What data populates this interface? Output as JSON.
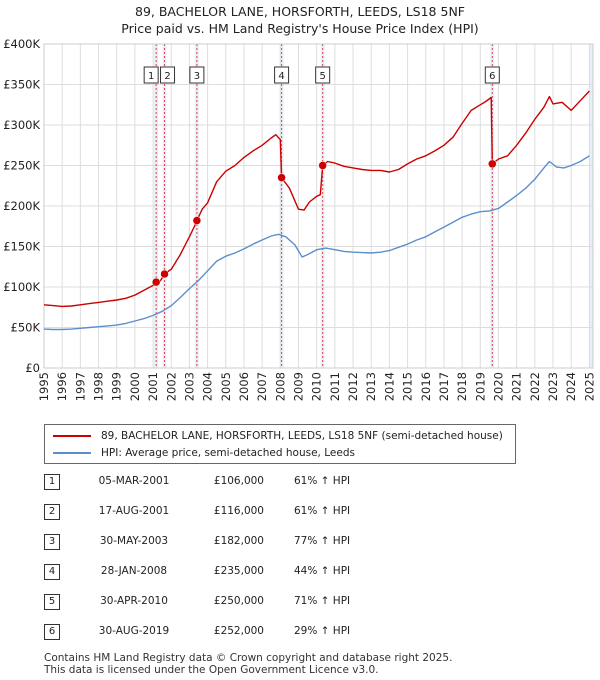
{
  "title_line1": "89, BACHELOR LANE, HORSFORTH, LEEDS, LS18 5NF",
  "title_line2": "Price paid vs. HM Land Registry's House Price Index (HPI)",
  "colors": {
    "property": "#cc0000",
    "hpi": "#5b8fcc",
    "marker_line": "#dd4444",
    "grid": "#dddddd",
    "shade": "#e8eef8"
  },
  "chart_data": {
    "type": "line",
    "title": "89, BACHELOR LANE, HORSFORTH, LEEDS, LS18 5NF",
    "subtitle": "Price paid vs. HM Land Registry's House Price Index (HPI)",
    "xlim": [
      1995,
      2025.2
    ],
    "ylim": [
      0,
      400000
    ],
    "grid": true,
    "legend_position": "bottom",
    "x_ticks": [
      1995,
      1996,
      1997,
      1998,
      1999,
      2000,
      2001,
      2002,
      2003,
      2004,
      2005,
      2006,
      2007,
      2008,
      2009,
      2010,
      2011,
      2012,
      2013,
      2014,
      2015,
      2016,
      2017,
      2018,
      2019,
      2020,
      2021,
      2022,
      2023,
      2024,
      2025
    ],
    "y_ticks": [
      {
        "value": 0,
        "label": "£0"
      },
      {
        "value": 50000,
        "label": "£50K"
      },
      {
        "value": 100000,
        "label": "£100K"
      },
      {
        "value": 150000,
        "label": "£150K"
      },
      {
        "value": 200000,
        "label": "£200K"
      },
      {
        "value": 250000,
        "label": "£250K"
      },
      {
        "value": 300000,
        "label": "£300K"
      },
      {
        "value": 350000,
        "label": "£350K"
      },
      {
        "value": 400000,
        "label": "£400K"
      }
    ],
    "series": [
      {
        "name": "89, BACHELOR LANE, HORSFORTH, LEEDS, LS18 5NF (semi-detached house)",
        "color": "#cc0000",
        "points": [
          [
            1995.0,
            78000
          ],
          [
            1995.5,
            77000
          ],
          [
            1996.0,
            76000
          ],
          [
            1996.5,
            76500
          ],
          [
            1997.0,
            78000
          ],
          [
            1997.5,
            79500
          ],
          [
            1998.0,
            81000
          ],
          [
            1998.5,
            82500
          ],
          [
            1999.0,
            84000
          ],
          [
            1999.5,
            86000
          ],
          [
            2000.0,
            90000
          ],
          [
            2000.5,
            96000
          ],
          [
            2001.0,
            102000
          ],
          [
            2001.18,
            106000
          ],
          [
            2001.4,
            107500
          ],
          [
            2001.63,
            116000
          ],
          [
            2002.0,
            122000
          ],
          [
            2002.5,
            140000
          ],
          [
            2003.0,
            162000
          ],
          [
            2003.3,
            176000
          ],
          [
            2003.41,
            182000
          ],
          [
            2003.7,
            196000
          ],
          [
            2004.0,
            204000
          ],
          [
            2004.5,
            230000
          ],
          [
            2005.0,
            243000
          ],
          [
            2005.5,
            250000
          ],
          [
            2006.0,
            260000
          ],
          [
            2006.5,
            268000
          ],
          [
            2007.0,
            275000
          ],
          [
            2007.5,
            284000
          ],
          [
            2007.75,
            288000
          ],
          [
            2008.0,
            282000
          ],
          [
            2008.07,
            235000
          ],
          [
            2008.5,
            222000
          ],
          [
            2009.0,
            196000
          ],
          [
            2009.3,
            195000
          ],
          [
            2009.6,
            205000
          ],
          [
            2010.0,
            212000
          ],
          [
            2010.2,
            214000
          ],
          [
            2010.33,
            250000
          ],
          [
            2010.6,
            255000
          ],
          [
            2011.0,
            253000
          ],
          [
            2011.5,
            249000
          ],
          [
            2012.0,
            247000
          ],
          [
            2012.5,
            245000
          ],
          [
            2013.0,
            244000
          ],
          [
            2013.5,
            244000
          ],
          [
            2014.0,
            242000
          ],
          [
            2014.5,
            245000
          ],
          [
            2015.0,
            252000
          ],
          [
            2015.5,
            258000
          ],
          [
            2016.0,
            262000
          ],
          [
            2016.5,
            268000
          ],
          [
            2017.0,
            275000
          ],
          [
            2017.5,
            285000
          ],
          [
            2018.0,
            302000
          ],
          [
            2018.5,
            318000
          ],
          [
            2019.0,
            325000
          ],
          [
            2019.3,
            329000
          ],
          [
            2019.6,
            334000
          ],
          [
            2019.66,
            252000
          ],
          [
            2020.0,
            258000
          ],
          [
            2020.5,
            262000
          ],
          [
            2021.0,
            275000
          ],
          [
            2021.5,
            290000
          ],
          [
            2022.0,
            307000
          ],
          [
            2022.5,
            322000
          ],
          [
            2022.8,
            335000
          ],
          [
            2023.0,
            326000
          ],
          [
            2023.5,
            328000
          ],
          [
            2024.0,
            318000
          ],
          [
            2024.5,
            330000
          ],
          [
            2025.0,
            342000
          ]
        ]
      },
      {
        "name": "HPI: Average price, semi-detached house, Leeds",
        "color": "#5b8fcc",
        "points": [
          [
            1995.0,
            48000
          ],
          [
            1995.5,
            47500
          ],
          [
            1996.0,
            47500
          ],
          [
            1996.5,
            48000
          ],
          [
            1997.0,
            49000
          ],
          [
            1997.5,
            50000
          ],
          [
            1998.0,
            51000
          ],
          [
            1998.5,
            52000
          ],
          [
            1999.0,
            53000
          ],
          [
            1999.5,
            55000
          ],
          [
            2000.0,
            58000
          ],
          [
            2000.5,
            61000
          ],
          [
            2001.0,
            65000
          ],
          [
            2001.5,
            70000
          ],
          [
            2002.0,
            77000
          ],
          [
            2002.5,
            87000
          ],
          [
            2003.0,
            98000
          ],
          [
            2003.5,
            108000
          ],
          [
            2004.0,
            120000
          ],
          [
            2004.5,
            132000
          ],
          [
            2005.0,
            138000
          ],
          [
            2005.5,
            142000
          ],
          [
            2006.0,
            147000
          ],
          [
            2006.5,
            153000
          ],
          [
            2007.0,
            158000
          ],
          [
            2007.5,
            163000
          ],
          [
            2007.9,
            165000
          ],
          [
            2008.3,
            162000
          ],
          [
            2008.8,
            152000
          ],
          [
            2009.2,
            137000
          ],
          [
            2009.5,
            140000
          ],
          [
            2010.0,
            146000
          ],
          [
            2010.5,
            148000
          ],
          [
            2011.0,
            146000
          ],
          [
            2011.5,
            144000
          ],
          [
            2012.0,
            143000
          ],
          [
            2012.5,
            142500
          ],
          [
            2013.0,
            142000
          ],
          [
            2013.5,
            143000
          ],
          [
            2014.0,
            145000
          ],
          [
            2014.5,
            149000
          ],
          [
            2015.0,
            153000
          ],
          [
            2015.5,
            158000
          ],
          [
            2016.0,
            162000
          ],
          [
            2016.5,
            168000
          ],
          [
            2017.0,
            174000
          ],
          [
            2017.5,
            180000
          ],
          [
            2018.0,
            186000
          ],
          [
            2018.5,
            190000
          ],
          [
            2019.0,
            193000
          ],
          [
            2019.5,
            194000
          ],
          [
            2020.0,
            197000
          ],
          [
            2020.5,
            205000
          ],
          [
            2021.0,
            213000
          ],
          [
            2021.5,
            222000
          ],
          [
            2022.0,
            233000
          ],
          [
            2022.5,
            247000
          ],
          [
            2022.8,
            255000
          ],
          [
            2023.2,
            248000
          ],
          [
            2023.6,
            247000
          ],
          [
            2024.0,
            250000
          ],
          [
            2024.5,
            255000
          ],
          [
            2025.0,
            262000
          ]
        ]
      }
    ],
    "sales": [
      {
        "id": "1",
        "x": 2001.17,
        "value": 106000
      },
      {
        "id": "2",
        "x": 2001.63,
        "value": 116000
      },
      {
        "id": "3",
        "x": 2003.41,
        "value": 182000
      },
      {
        "id": "4",
        "x": 2008.07,
        "value": 235000
      },
      {
        "id": "5",
        "x": 2010.33,
        "value": 250000
      },
      {
        "id": "6",
        "x": 2019.66,
        "value": 252000
      }
    ]
  },
  "legend": [
    {
      "label": "89, BACHELOR LANE, HORSFORTH, LEEDS, LS18 5NF (semi-detached house)",
      "color": "#cc0000"
    },
    {
      "label": "HPI: Average price, semi-detached house, Leeds",
      "color": "#5b8fcc"
    }
  ],
  "table": [
    {
      "num": "1",
      "date": "05-MAR-2001",
      "price": "£106,000",
      "hpi": "61% ↑ HPI"
    },
    {
      "num": "2",
      "date": "17-AUG-2001",
      "price": "£116,000",
      "hpi": "61% ↑ HPI"
    },
    {
      "num": "3",
      "date": "30-MAY-2003",
      "price": "£182,000",
      "hpi": "77% ↑ HPI"
    },
    {
      "num": "4",
      "date": "28-JAN-2008",
      "price": "£235,000",
      "hpi": "44% ↑ HPI"
    },
    {
      "num": "5",
      "date": "30-APR-2010",
      "price": "£250,000",
      "hpi": "71% ↑ HPI"
    },
    {
      "num": "6",
      "date": "30-AUG-2019",
      "price": "£252,000",
      "hpi": "29% ↑ HPI"
    }
  ],
  "footer_line1": "Contains HM Land Registry data © Crown copyright and database right 2025.",
  "footer_line2": "This data is licensed under the Open Government Licence v3.0."
}
